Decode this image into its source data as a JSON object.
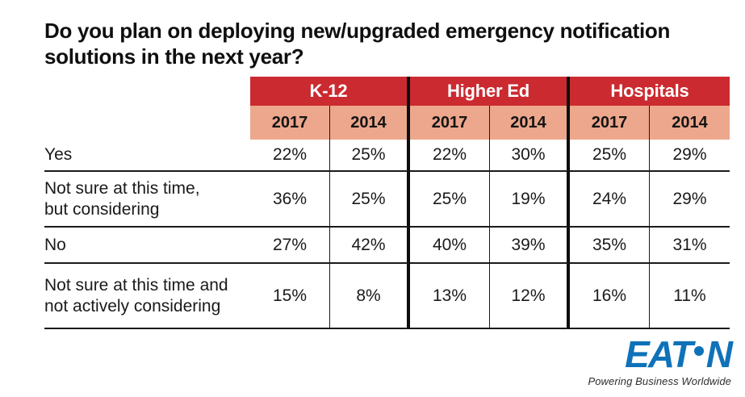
{
  "title": "Do you plan on deploying new/upgraded emergency notification solutions in the next year?",
  "colors": {
    "header_red": "#cb2a30",
    "header_salmon": "#eda78c",
    "grid_line": "#1a1a1a",
    "eaton_blue": "#0f72b9",
    "background": "#ffffff"
  },
  "table": {
    "groups": [
      {
        "label": "K-12"
      },
      {
        "label": "Higher Ed"
      },
      {
        "label": "Hospitals"
      }
    ],
    "years": [
      "2017",
      "2014",
      "2017",
      "2014",
      "2017",
      "2014"
    ],
    "rows": [
      {
        "label": "Yes",
        "values": [
          "22%",
          "25%",
          "22%",
          "30%",
          "25%",
          "29%"
        ]
      },
      {
        "label": "Not sure at this time,\nbut considering",
        "values": [
          "36%",
          "25%",
          "25%",
          "19%",
          "24%",
          "29%"
        ]
      },
      {
        "label": "No",
        "values": [
          "27%",
          "42%",
          "40%",
          "39%",
          "35%",
          "31%"
        ]
      },
      {
        "label": "Not sure at this time and\nnot actively considering",
        "values": [
          "15%",
          "8%",
          "13%",
          "12%",
          "16%",
          "11%"
        ]
      }
    ]
  },
  "logo": {
    "word_left": "EAT",
    "word_right": "N",
    "o_dot_icon": "filled-circle",
    "tagline": "Powering Business Worldwide"
  },
  "chart_data": {
    "type": "table",
    "title": "Do you plan on deploying new/upgraded emergency notification solutions in the next year?",
    "column_groups": [
      {
        "label": "K-12",
        "columns": [
          "2017",
          "2014"
        ]
      },
      {
        "label": "Higher Ed",
        "columns": [
          "2017",
          "2014"
        ]
      },
      {
        "label": "Hospitals",
        "columns": [
          "2017",
          "2014"
        ]
      }
    ],
    "rows": [
      {
        "label": "Yes",
        "values_pct": [
          22,
          25,
          22,
          30,
          25,
          29
        ]
      },
      {
        "label": "Not sure at this time, but considering",
        "values_pct": [
          36,
          25,
          25,
          19,
          24,
          29
        ]
      },
      {
        "label": "No",
        "values_pct": [
          27,
          42,
          40,
          39,
          35,
          31
        ]
      },
      {
        "label": "Not sure at this time and not actively considering",
        "values_pct": [
          15,
          8,
          13,
          12,
          16,
          11
        ]
      }
    ],
    "legend_position": "none",
    "grid": true,
    "brand": "Eaton — Powering Business Worldwide"
  }
}
